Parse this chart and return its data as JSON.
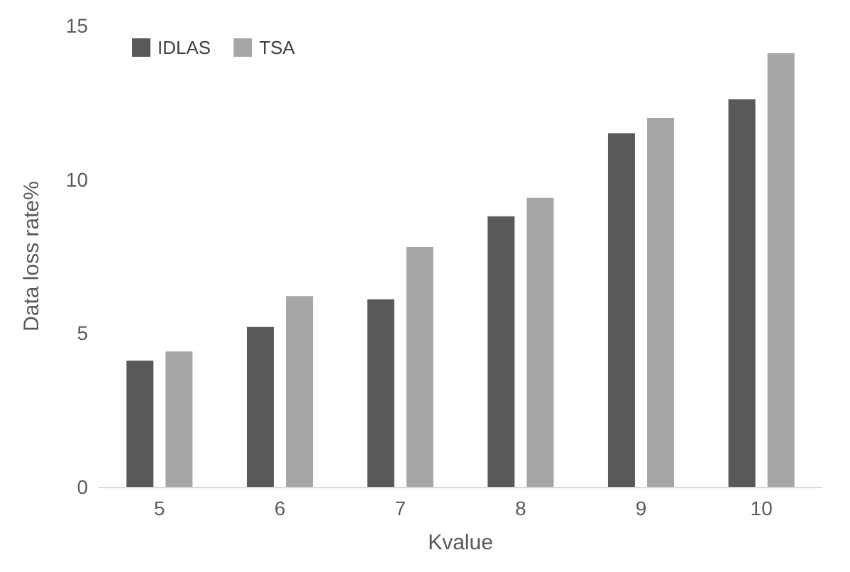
{
  "chart_data": {
    "type": "bar",
    "xlabel": "Kvalue",
    "ylabel": "Data loss rate%",
    "categories": [
      "5",
      "6",
      "7",
      "8",
      "9",
      "10"
    ],
    "series": [
      {
        "name": "IDLAS",
        "color": "#595959",
        "values": [
          4.1,
          5.2,
          6.1,
          8.8,
          11.5,
          12.6
        ]
      },
      {
        "name": "TSA",
        "color": "#a6a6a6",
        "values": [
          4.4,
          6.2,
          7.8,
          9.4,
          12.0,
          14.1
        ]
      }
    ],
    "ylim": [
      0,
      15
    ],
    "yticks": [
      0,
      5,
      10,
      15
    ],
    "grid": false,
    "legend": "top left"
  }
}
